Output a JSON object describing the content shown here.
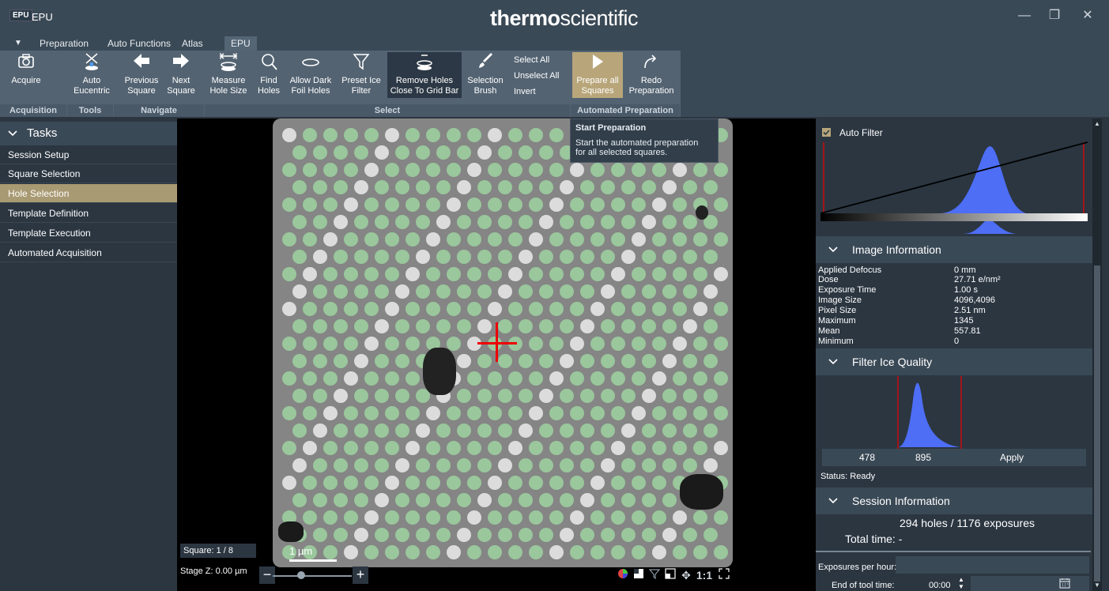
{
  "titlebar": {
    "logo": "EPU",
    "title": "EPU",
    "brand_bold": "thermo",
    "brand_light": "scientific",
    "minimize": "—",
    "restore": "❐",
    "close": "✕"
  },
  "tabs": [
    {
      "label": "Preparation"
    },
    {
      "label": "Auto Functions"
    },
    {
      "label": "Atlas"
    },
    {
      "label": "EPU"
    }
  ],
  "tab_menu_icon": "▼",
  "ribbon": {
    "acquire": "Acquire",
    "auto_eucentric_1": "Auto",
    "auto_eucentric_2": "Eucentric",
    "previous_square_1": "Previous",
    "previous_square_2": "Square",
    "next_square_1": "Next",
    "next_square_2": "Square",
    "measure_1": "Measure",
    "measure_2": "Hole Size",
    "find_1": "Find",
    "find_2": "Holes",
    "allow_dark_1": "Allow Dark",
    "allow_dark_2": "Foil Holes",
    "preset_ice_1": "Preset Ice",
    "preset_ice_2": "Filter",
    "remove_holes_1": "Remove Holes",
    "remove_holes_2": "Close To Grid Bar",
    "selection_brush_1": "Selection",
    "selection_brush_2": "Brush",
    "select_all": "Select All",
    "unselect_all": "Unselect All",
    "invert": "Invert",
    "prepare_all_1": "Prepare all",
    "prepare_all_2": "Squares",
    "redo_1": "Redo",
    "redo_2": "Preparation",
    "groups": {
      "acquisition": "Acquisition",
      "tools": "Tools",
      "navigate": "Navigate",
      "select": "Select",
      "automated_preparation": "Automated Preparation"
    }
  },
  "tooltip": {
    "title": "Start Preparation",
    "line1": "Start the automated preparation",
    "line2": "for all selected squares."
  },
  "tasks": {
    "header": "Tasks",
    "items": [
      {
        "label": "Session Setup"
      },
      {
        "label": "Square Selection"
      },
      {
        "label": "Hole Selection"
      },
      {
        "label": "Template Definition"
      },
      {
        "label": "Template Execution"
      },
      {
        "label": "Automated Acquisition"
      }
    ],
    "active_index": 2
  },
  "viewer": {
    "square_label": "Square: 1 / 8",
    "scale_label": "1 µm",
    "stage_z_label": "Stage Z:  0.00  µm",
    "zoom_minus": "−",
    "zoom_plus": "+",
    "ratio_label": "1:1"
  },
  "right_panel": {
    "auto_filter_label": "Auto Filter",
    "auto_filter_checked": true,
    "image_information": {
      "header": "Image Information",
      "rows": [
        {
          "k": "Applied Defocus",
          "v": "0 mm"
        },
        {
          "k": "Dose",
          "v": "27.71 e/nm²"
        },
        {
          "k": "Exposure Time",
          "v": "1.00 s"
        },
        {
          "k": "Image Size",
          "v": "4096,4096"
        },
        {
          "k": "Pixel Size",
          "v": "2.51 nm"
        },
        {
          "k": "Maximum",
          "v": "1345"
        },
        {
          "k": "Mean",
          "v": "557.81"
        },
        {
          "k": "Minimum",
          "v": "0"
        }
      ]
    },
    "filter_ice_quality": {
      "header": "Filter Ice Quality",
      "low": "478",
      "high": "895",
      "apply": "Apply",
      "status": "Status: Ready"
    },
    "session_information": {
      "header": "Session Information",
      "holes_exposures": "294 holes / 1176 exposures",
      "total_time": "Total time: -",
      "exposures_per_hour_label": "Exposures per hour:",
      "end_of_tool_time_label": "End of tool time:",
      "end_of_tool_time_value": "00:00"
    }
  },
  "colors": {
    "accent_gold": "#b8a67a",
    "histogram_blue": "#4d6ef5",
    "marker_red": "#a3151a",
    "selected_hole": "#9ac79c"
  }
}
